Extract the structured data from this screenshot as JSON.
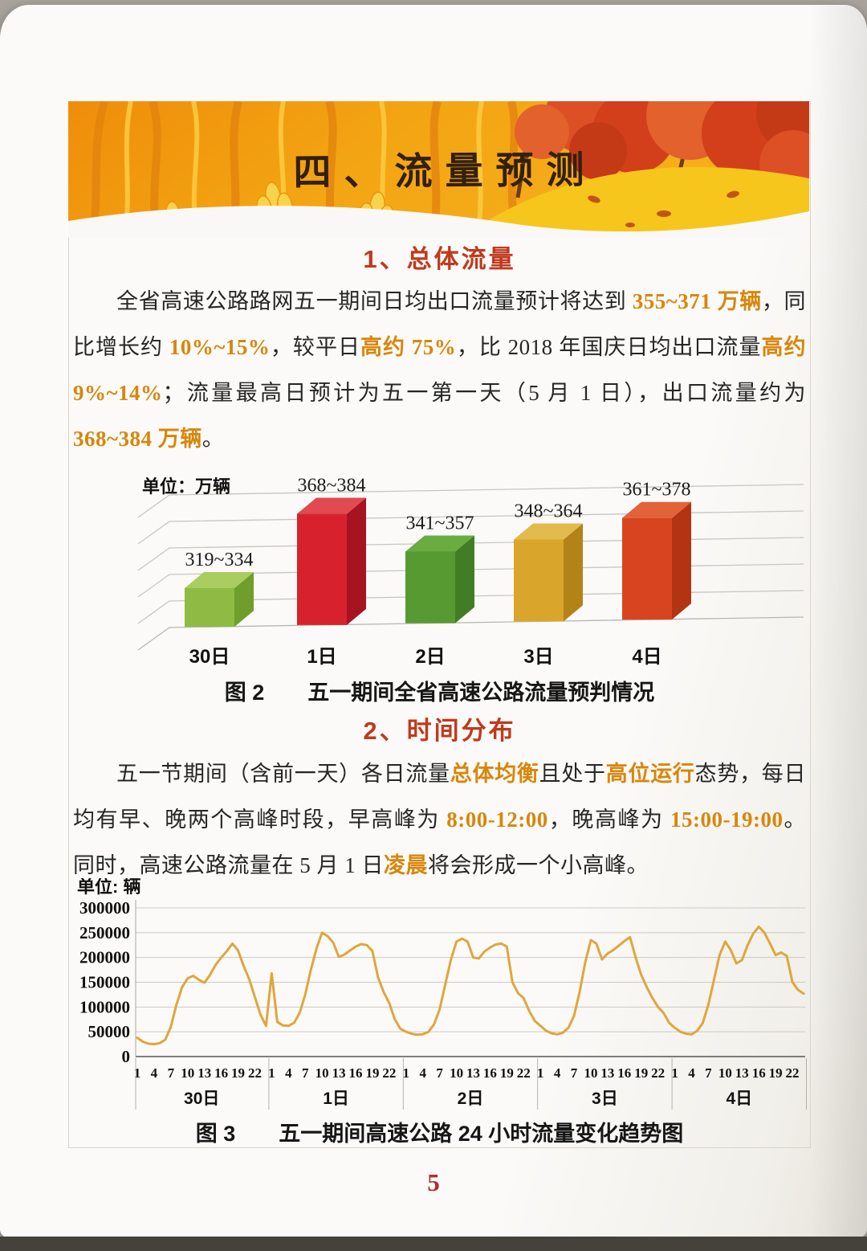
{
  "page_number": "5",
  "banner": {
    "title": "四、流量预测"
  },
  "sections": [
    {
      "heading": "1、总体流量"
    },
    {
      "heading": "2、时间分布"
    }
  ],
  "paragraph1": [
    {
      "t": "全省高速公路路网五一期间日均出口流量预计将达到 "
    },
    {
      "t": "355~371 ",
      "c": "hn"
    },
    {
      "t": "万辆",
      "c": "hc"
    },
    {
      "t": "，同比增长约 "
    },
    {
      "t": "10%~15%",
      "c": "hn"
    },
    {
      "t": "，较平日"
    },
    {
      "t": "高约",
      "c": "hc"
    },
    {
      "t": " 75%",
      "c": "hn"
    },
    {
      "t": "，比 2018 年国庆日均出口流量"
    },
    {
      "t": "高约",
      "c": "hc"
    },
    {
      "t": " 9%~14%",
      "c": "hn"
    },
    {
      "t": "；流量最高日预计为五一第一天（5 月 1 日），出口流量约为 "
    },
    {
      "t": "368~384 ",
      "c": "hn"
    },
    {
      "t": "万辆",
      "c": "hc"
    },
    {
      "t": "。"
    }
  ],
  "paragraph2": [
    {
      "t": "五一节期间（含前一天）各日流量"
    },
    {
      "t": "总体均衡",
      "c": "hc"
    },
    {
      "t": "且处于"
    },
    {
      "t": "高位运行",
      "c": "hc"
    },
    {
      "t": "态势，每日均有早、晚两个高峰时段，早高峰为 "
    },
    {
      "t": "8:00-12:00",
      "c": "hn"
    },
    {
      "t": "，晚高峰为 "
    },
    {
      "t": "15:00-19:00",
      "c": "hn"
    },
    {
      "t": "。同时，高速公路流量在 5 月 1 日"
    },
    {
      "t": "凌晨",
      "c": "hc"
    },
    {
      "t": "将会形成一个小高峰。"
    }
  ],
  "chart_data": [
    {
      "type": "bar",
      "title": "五一期间全省高速公路流量预判情况",
      "caption": "图 2　　五一期间全省高速公路流量预判情况",
      "unit": "单位：万辆",
      "ylabel": "万辆",
      "baseline": 300,
      "ylim": [
        300,
        390
      ],
      "grid": true,
      "bars": [
        {
          "label": "30日",
          "range": "319~334",
          "low": 319,
          "high": 334,
          "mid": 326.5,
          "front": "#8fba43",
          "top": "#a9cd60",
          "side": "#6f9e2c"
        },
        {
          "label": "1日",
          "range": "368~384",
          "low": 368,
          "high": 384,
          "mid": 376,
          "front": "#d7222d",
          "top": "#e14a50",
          "side": "#a81320"
        },
        {
          "label": "2日",
          "range": "341~357",
          "low": 341,
          "high": 357,
          "mid": 349,
          "front": "#579a31",
          "top": "#6aac40",
          "side": "#417d24"
        },
        {
          "label": "3日",
          "range": "348~364",
          "low": 348,
          "high": 364,
          "mid": 356,
          "front": "#d9a52a",
          "top": "#e3ba4e",
          "side": "#b38317"
        },
        {
          "label": "4日",
          "range": "361~378",
          "low": 361,
          "high": 378,
          "mid": 369.5,
          "front": "#d84420",
          "top": "#e2633a",
          "side": "#b23413"
        }
      ]
    },
    {
      "type": "line",
      "title": "五一期间高速公路24小时流量变化趋势图",
      "caption": "图 3　　五一期间高速公路 24 小时流量变化趋势图",
      "unit": "单位: 辆",
      "line_color": "#dfa63e",
      "yticks": [
        0,
        50000,
        100000,
        150000,
        200000,
        250000,
        300000
      ],
      "ylim": [
        0,
        300000
      ],
      "grid": true,
      "hour_ticks": [
        1,
        4,
        7,
        10,
        13,
        16,
        19,
        22
      ],
      "days": [
        {
          "label": "30日",
          "values": [
            38000,
            30000,
            26000,
            25000,
            27000,
            34000,
            60000,
            105000,
            140000,
            158000,
            163000,
            155000,
            149000,
            165000,
            185000,
            200000,
            213000,
            228000,
            214000,
            183000,
            156000,
            120000,
            85000,
            62000
          ]
        },
        {
          "label": "1日",
          "values": [
            168000,
            70000,
            63000,
            62000,
            68000,
            88000,
            125000,
            175000,
            218000,
            250000,
            243000,
            230000,
            201000,
            206000,
            214000,
            222000,
            227000,
            225000,
            213000,
            160000,
            130000,
            108000,
            75000,
            56000
          ]
        },
        {
          "label": "2日",
          "values": [
            50000,
            46000,
            44000,
            45000,
            50000,
            65000,
            95000,
            145000,
            195000,
            232000,
            238000,
            232000,
            200000,
            198000,
            212000,
            220000,
            226000,
            228000,
            222000,
            150000,
            128000,
            118000,
            92000,
            72000
          ]
        },
        {
          "label": "3日",
          "values": [
            62000,
            52000,
            47000,
            45000,
            48000,
            58000,
            82000,
            130000,
            190000,
            235000,
            228000,
            196000,
            208000,
            215000,
            224000,
            233000,
            241000,
            200000,
            165000,
            140000,
            118000,
            100000,
            88000,
            68000
          ]
        },
        {
          "label": "4日",
          "values": [
            58000,
            50000,
            46000,
            45000,
            52000,
            68000,
            105000,
            155000,
            205000,
            232000,
            215000,
            188000,
            195000,
            225000,
            248000,
            262000,
            250000,
            228000,
            205000,
            210000,
            203000,
            150000,
            135000,
            127000
          ]
        }
      ]
    }
  ]
}
